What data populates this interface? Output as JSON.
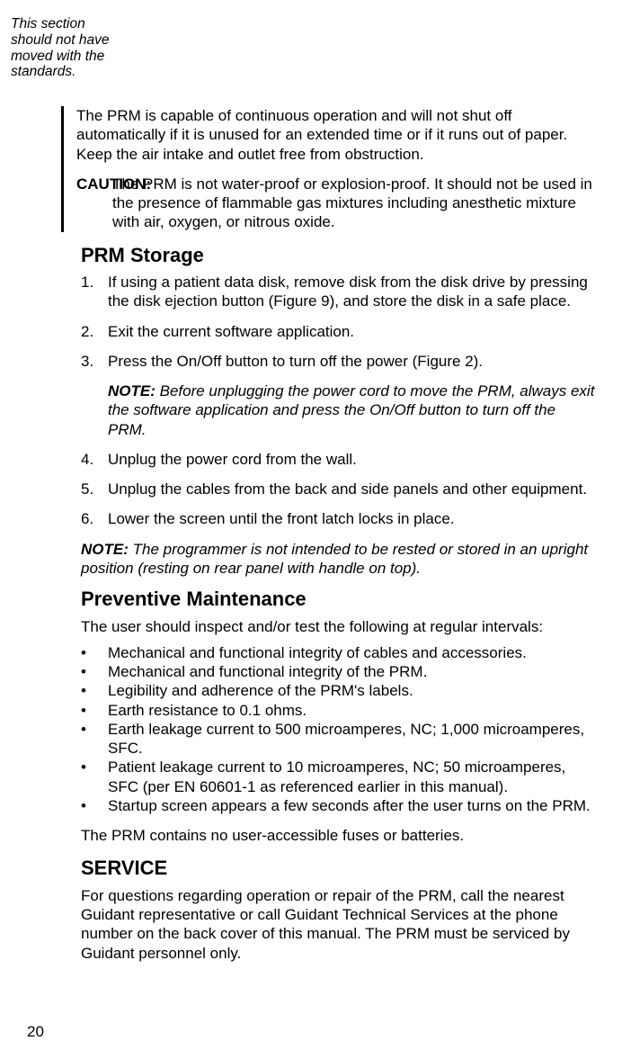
{
  "margin_note": "This section should not have moved with the standards.",
  "changebar": {
    "p1": "The PRM is capable of continuous operation and will not shut off automatically if it is unused for an extended time or if it runs out of paper. Keep the air intake and outlet free from obstruction.",
    "caution_label": "CAUTION:",
    "caution_text": "The PRM is not water-proof or explosion-proof. It should not be used in the presence of flammable gas mixtures including anesthetic mixture with air, oxygen, or nitrous oxide."
  },
  "storage": {
    "heading": "PRM Storage",
    "items": [
      "If using a patient data disk, remove disk from the disk drive by pressing the disk ejection button (Figure 9), and store the disk in a safe place.",
      "Exit the current software application.",
      "Press the On/Off button to turn off the power (Figure 2).",
      "Unplug the power cord from the wall.",
      "Unplug the cables from the back and side panels and other equipment.",
      "Lower the screen until the front latch locks in place."
    ],
    "note_after_3": {
      "label": "NOTE:",
      "text": "Before unplugging the power cord to move the PRM, always exit the software application and press the On/Off button to turn off the PRM."
    },
    "note_end": {
      "label": "NOTE:",
      "text": "The programmer is not intended to be rested or stored in an upright position (resting on rear panel with handle on top)."
    }
  },
  "prevent": {
    "heading": "Preventive Maintenance",
    "intro": "The user should inspect and/or test the following at regular intervals:",
    "bullets": [
      "Mechanical and functional integrity of cables and accessories.",
      "Mechanical and functional integrity of the PRM.",
      "Legibility and adherence of the PRM's labels.",
      "Earth resistance to 0.1 ohms.",
      "Earth leakage current to 500 microamperes, NC; 1,000 microamperes, SFC.",
      "Patient leakage current to 10 microamperes, NC; 50 microamperes, SFC (per EN 60601-1 as referenced earlier in this manual).",
      "Startup screen appears a few seconds after the user turns on the PRM."
    ],
    "closing": "The PRM contains no user-accessible fuses or batteries."
  },
  "service": {
    "heading": "SERVICE",
    "text": "For questions regarding operation or repair of the PRM, call the nearest Guidant representative or call Guidant Technical Services at the phone number on the back cover of this manual. The PRM must be serviced by Guidant personnel only."
  },
  "page_number": "20"
}
